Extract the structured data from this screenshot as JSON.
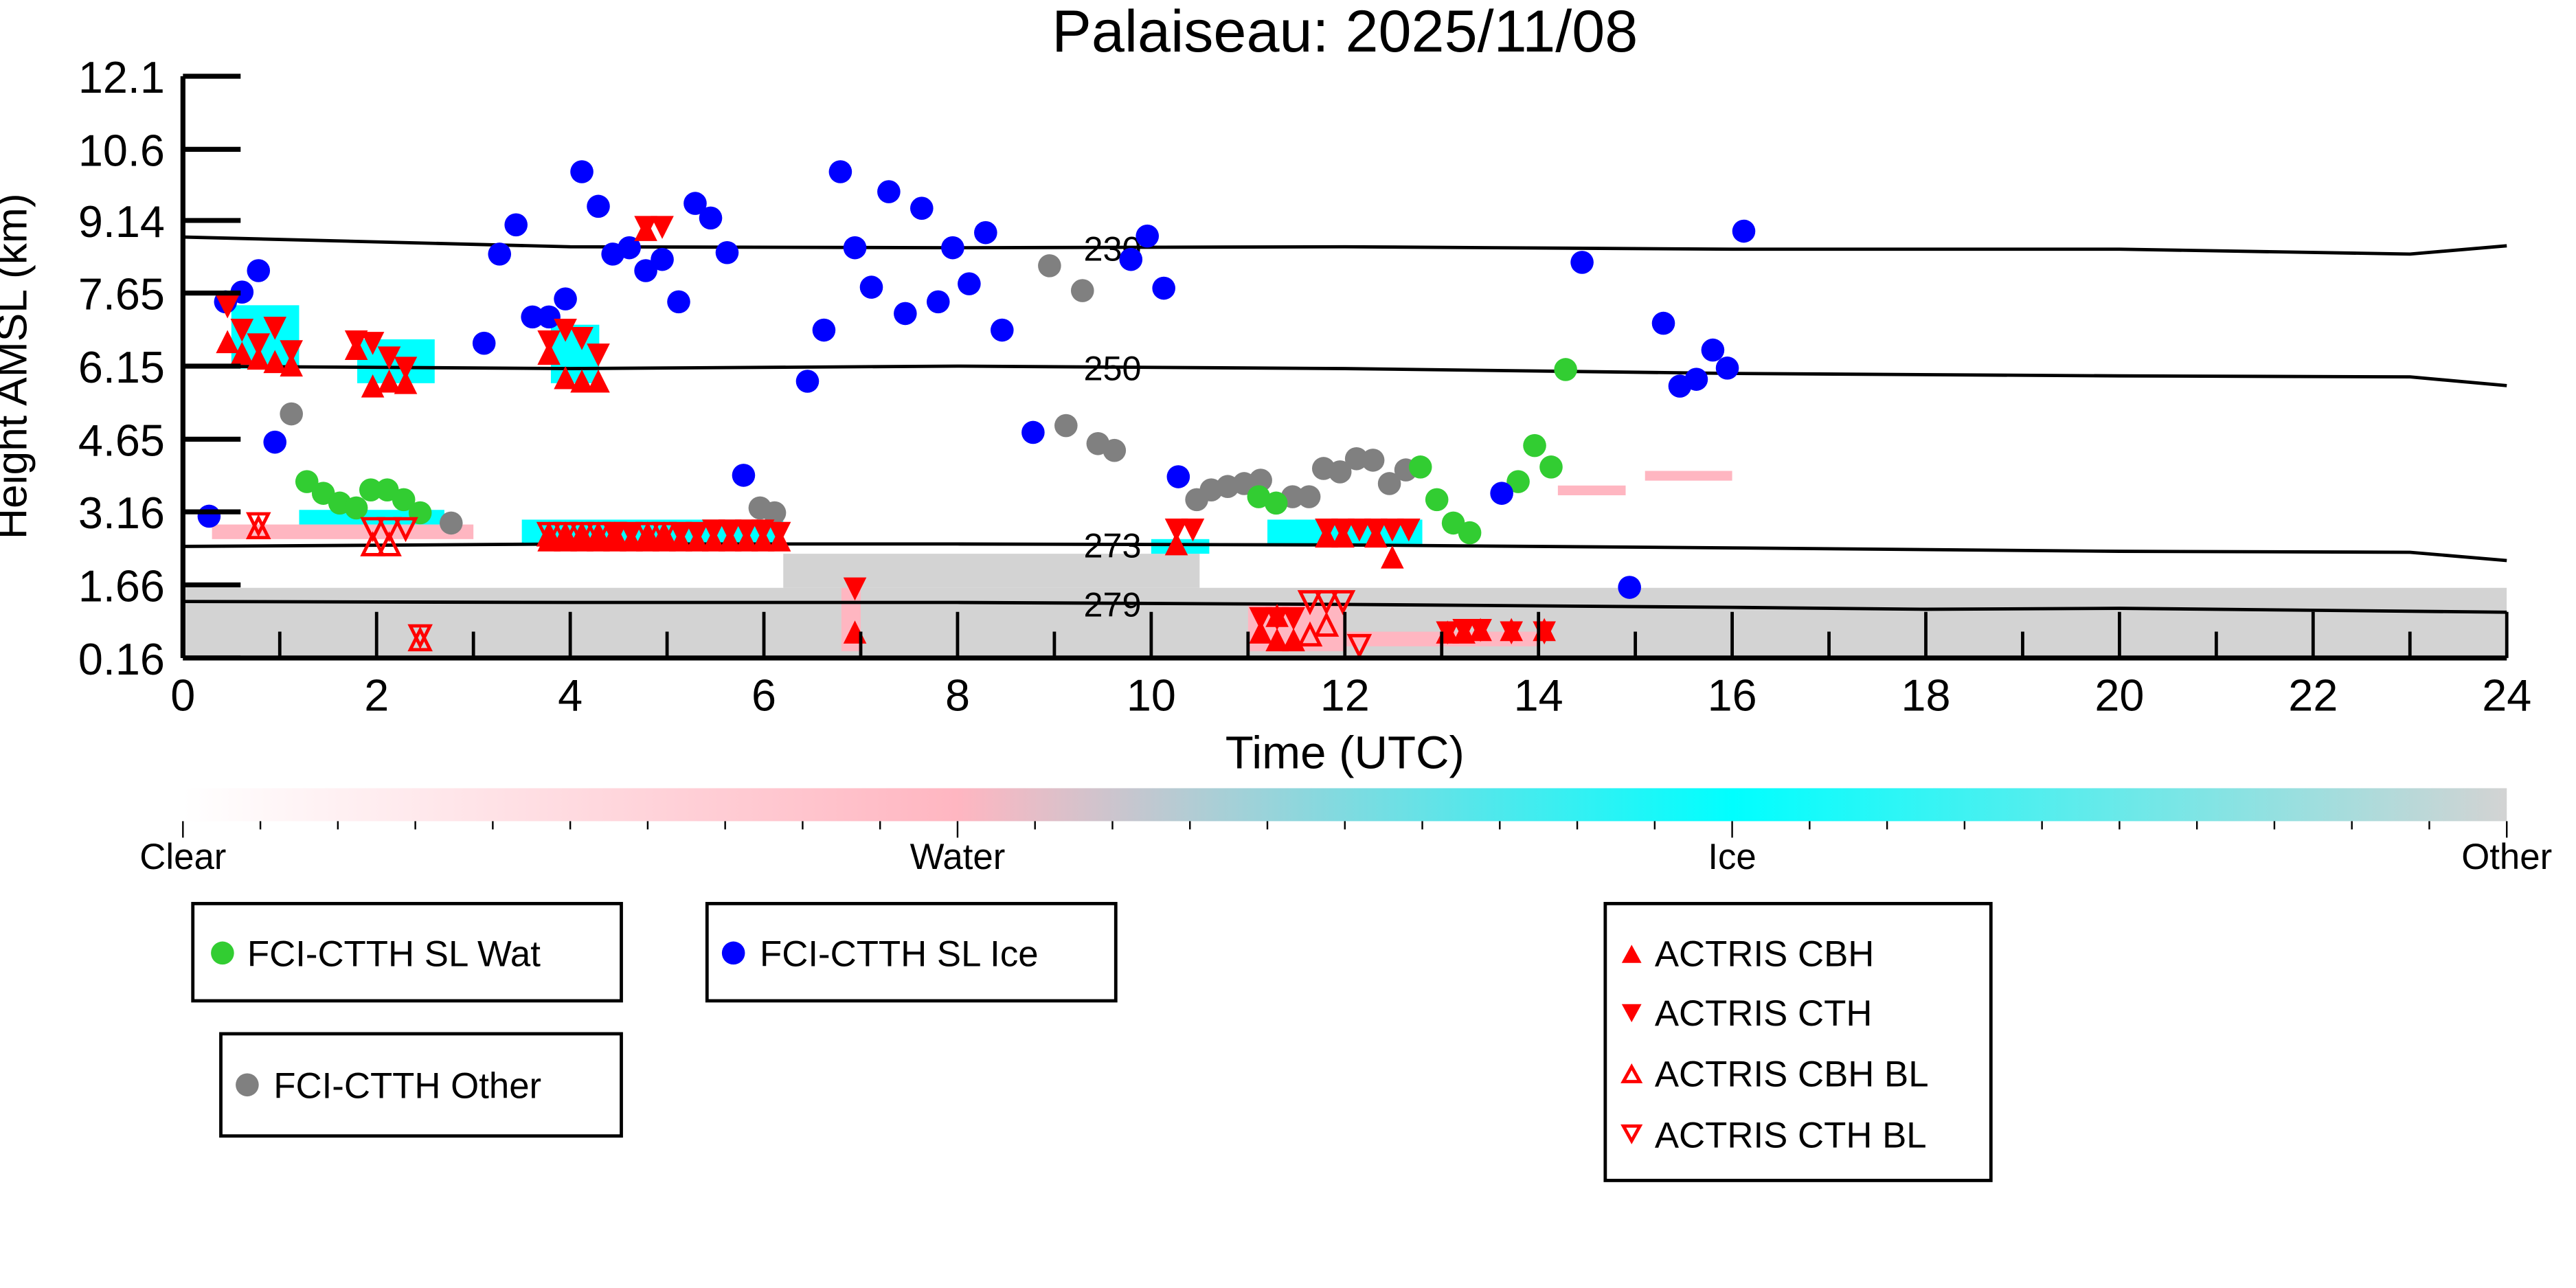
{
  "chart_data": {
    "type": "scatter",
    "title": "Palaiseau: 2025/11/08",
    "xlabel": "Time (UTC)",
    "ylabel": "Height AMSL (km)",
    "xlim": [
      0,
      24
    ],
    "ylim": [
      0.16,
      12.1
    ],
    "xticks": [
      "0",
      "2",
      "4",
      "6",
      "8",
      "10",
      "12",
      "14",
      "16",
      "18",
      "20",
      "22",
      "24"
    ],
    "yticks": [
      "0.16",
      "1.66",
      "3.16",
      "4.65",
      "6.15",
      "7.65",
      "9.14",
      "10.6",
      "12.1"
    ],
    "colorbar": {
      "labels": [
        "Clear",
        "Water",
        "Ice",
        "Other"
      ],
      "colors": [
        "#ffffff",
        "#ffb6c1",
        "#00ffff",
        "#d3d3d3"
      ]
    },
    "contours": [
      {
        "label": "230",
        "points": [
          [
            0,
            8.8
          ],
          [
            4,
            8.6
          ],
          [
            8,
            8.58
          ],
          [
            12,
            8.6
          ],
          [
            16,
            8.55
          ],
          [
            20,
            8.55
          ],
          [
            23,
            8.45
          ],
          [
            24,
            8.62
          ]
        ]
      },
      {
        "label": "250",
        "points": [
          [
            0,
            6.15
          ],
          [
            4,
            6.1
          ],
          [
            8,
            6.15
          ],
          [
            12,
            6.1
          ],
          [
            16,
            6.0
          ],
          [
            20,
            5.95
          ],
          [
            23,
            5.93
          ],
          [
            24,
            5.75
          ]
        ]
      },
      {
        "label": "273",
        "points": [
          [
            0,
            2.45
          ],
          [
            4,
            2.5
          ],
          [
            8,
            2.5
          ],
          [
            12,
            2.48
          ],
          [
            16,
            2.42
          ],
          [
            20,
            2.35
          ],
          [
            23,
            2.33
          ],
          [
            24,
            2.16
          ]
        ]
      },
      {
        "label": "279",
        "points": [
          [
            0,
            1.32
          ],
          [
            4,
            1.3
          ],
          [
            8,
            1.3
          ],
          [
            12,
            1.26
          ],
          [
            16,
            1.2
          ],
          [
            18,
            1.16
          ],
          [
            20,
            1.18
          ],
          [
            24,
            1.1
          ]
        ]
      }
    ],
    "curtain": [
      {
        "class": "Other",
        "t0": 0,
        "t1": 24,
        "h0": 0.16,
        "h1": 1.6
      },
      {
        "class": "Other",
        "t0": 6.2,
        "t1": 10.5,
        "h0": 1.6,
        "h1": 2.3
      },
      {
        "class": "Water",
        "t0": 0.3,
        "t1": 3.0,
        "h0": 2.6,
        "h1": 2.9
      },
      {
        "class": "Ice",
        "t0": 0.5,
        "t1": 1.2,
        "h0": 6.1,
        "h1": 7.4
      },
      {
        "class": "Ice",
        "t0": 1.8,
        "t1": 2.6,
        "h0": 5.8,
        "h1": 6.7
      },
      {
        "class": "Ice",
        "t0": 3.8,
        "t1": 4.3,
        "h0": 5.8,
        "h1": 7.0
      },
      {
        "class": "Ice",
        "t0": 1.2,
        "t1": 2.7,
        "h0": 2.9,
        "h1": 3.2
      },
      {
        "class": "Ice",
        "t0": 3.5,
        "t1": 6.2,
        "h0": 2.5,
        "h1": 3.0
      },
      {
        "class": "Ice",
        "t0": 10.0,
        "t1": 10.6,
        "h0": 2.3,
        "h1": 2.6
      },
      {
        "class": "Ice",
        "t0": 11.2,
        "t1": 12.8,
        "h0": 2.5,
        "h1": 3.0
      },
      {
        "class": "Water",
        "t0": 11.0,
        "t1": 12.0,
        "h0": 0.3,
        "h1": 1.3
      },
      {
        "class": "Water",
        "t0": 12.0,
        "t1": 14.0,
        "h0": 0.4,
        "h1": 0.7
      },
      {
        "class": "Water",
        "t0": 14.2,
        "t1": 14.9,
        "h0": 3.5,
        "h1": 3.7
      },
      {
        "class": "Water",
        "t0": 15.1,
        "t1": 16.0,
        "h0": 3.8,
        "h1": 4.0
      },
      {
        "class": "Water",
        "t0": 6.8,
        "t1": 7.0,
        "h0": 0.3,
        "h1": 1.6
      }
    ],
    "series": [
      {
        "name": "FCI-CTTH SL Wat",
        "marker": "circle",
        "color": "#32cd32",
        "points": [
          [
            1.28,
            3.78
          ],
          [
            1.45,
            3.54
          ],
          [
            1.62,
            3.34
          ],
          [
            1.79,
            3.24
          ],
          [
            1.94,
            3.61
          ],
          [
            2.11,
            3.61
          ],
          [
            2.28,
            3.41
          ],
          [
            2.45,
            3.14
          ],
          [
            11.11,
            3.47
          ],
          [
            11.29,
            3.34
          ],
          [
            12.78,
            4.08
          ],
          [
            12.95,
            3.41
          ],
          [
            13.12,
            2.93
          ],
          [
            13.29,
            2.73
          ],
          [
            13.79,
            3.78
          ],
          [
            13.96,
            4.52
          ],
          [
            14.13,
            4.08
          ],
          [
            14.28,
            6.08
          ]
        ]
      },
      {
        "name": "FCI-CTTH SL Ice",
        "marker": "circle",
        "color": "#0000ff",
        "points": [
          [
            0.27,
            3.07
          ],
          [
            0.44,
            7.47
          ],
          [
            0.61,
            7.67
          ],
          [
            0.78,
            8.11
          ],
          [
            0.95,
            4.59
          ],
          [
            3.11,
            6.62
          ],
          [
            3.27,
            8.45
          ],
          [
            3.44,
            9.05
          ],
          [
            3.61,
            7.16
          ],
          [
            3.78,
            7.16
          ],
          [
            3.95,
            7.53
          ],
          [
            4.12,
            10.14
          ],
          [
            4.29,
            9.43
          ],
          [
            4.44,
            8.45
          ],
          [
            4.61,
            8.58
          ],
          [
            4.78,
            8.11
          ],
          [
            4.95,
            8.34
          ],
          [
            5.12,
            7.47
          ],
          [
            5.29,
            9.49
          ],
          [
            5.45,
            9.19
          ],
          [
            5.62,
            8.48
          ],
          [
            5.79,
            3.91
          ],
          [
            6.45,
            5.84
          ],
          [
            6.62,
            6.89
          ],
          [
            6.79,
            10.14
          ],
          [
            6.94,
            8.58
          ],
          [
            7.11,
            7.77
          ],
          [
            7.29,
            9.73
          ],
          [
            7.46,
            7.23
          ],
          [
            7.63,
            9.39
          ],
          [
            7.8,
            7.47
          ],
          [
            7.95,
            8.58
          ],
          [
            8.12,
            7.84
          ],
          [
            8.29,
            8.89
          ],
          [
            8.46,
            6.89
          ],
          [
            8.78,
            4.79
          ],
          [
            9.79,
            8.34
          ],
          [
            9.96,
            8.82
          ],
          [
            10.13,
            7.75
          ],
          [
            10.28,
            3.88
          ],
          [
            13.62,
            3.54
          ],
          [
            14.45,
            8.28
          ],
          [
            14.94,
            1.61
          ],
          [
            15.29,
            7.03
          ],
          [
            15.46,
            5.74
          ],
          [
            15.63,
            5.88
          ],
          [
            15.8,
            6.48
          ],
          [
            15.95,
            6.11
          ],
          [
            16.12,
            8.92
          ]
        ]
      },
      {
        "name": "FCI-CTTH Other",
        "marker": "circle",
        "color": "#808080",
        "points": [
          [
            1.12,
            5.17
          ],
          [
            2.77,
            2.93
          ],
          [
            5.96,
            3.24
          ],
          [
            6.11,
            3.14
          ],
          [
            8.95,
            8.21
          ],
          [
            9.29,
            7.7
          ],
          [
            9.12,
            4.93
          ],
          [
            9.45,
            4.56
          ],
          [
            9.62,
            4.42
          ],
          [
            10.47,
            3.41
          ],
          [
            10.62,
            3.61
          ],
          [
            10.79,
            3.68
          ],
          [
            10.96,
            3.74
          ],
          [
            11.13,
            3.81
          ],
          [
            11.46,
            3.47
          ],
          [
            11.63,
            3.47
          ],
          [
            11.78,
            4.05
          ],
          [
            11.95,
            3.98
          ],
          [
            12.12,
            4.25
          ],
          [
            12.29,
            4.22
          ],
          [
            12.46,
            3.74
          ],
          [
            12.63,
            4.02
          ]
        ]
      },
      {
        "name": "ACTRIS CBH",
        "marker": "triangle-up",
        "color": "#ff0000",
        "points": [
          [
            0.46,
            6.62
          ],
          [
            0.61,
            6.38
          ],
          [
            0.78,
            6.28
          ],
          [
            0.95,
            6.21
          ],
          [
            1.12,
            6.14
          ],
          [
            1.79,
            6.48
          ],
          [
            1.96,
            5.71
          ],
          [
            2.13,
            5.81
          ],
          [
            2.3,
            5.78
          ],
          [
            3.78,
            6.38
          ],
          [
            3.95,
            5.88
          ],
          [
            4.12,
            5.81
          ],
          [
            4.29,
            5.81
          ],
          [
            4.78,
            8.92
          ],
          [
            3.78,
            2.55
          ],
          [
            3.95,
            2.55
          ],
          [
            4.12,
            2.55
          ],
          [
            4.29,
            2.55
          ],
          [
            4.46,
            2.55
          ],
          [
            4.63,
            2.55
          ],
          [
            4.8,
            2.55
          ],
          [
            4.97,
            2.55
          ],
          [
            5.14,
            2.55
          ],
          [
            5.31,
            2.55
          ],
          [
            5.48,
            2.55
          ],
          [
            5.65,
            2.55
          ],
          [
            5.82,
            2.55
          ],
          [
            5.99,
            2.55
          ],
          [
            6.16,
            2.55
          ],
          [
            6.94,
            0.66
          ],
          [
            10.26,
            2.47
          ],
          [
            11.13,
            0.66
          ],
          [
            11.3,
            0.5
          ],
          [
            11.47,
            0.5
          ],
          [
            11.3,
            1.0
          ],
          [
            11.81,
            2.63
          ],
          [
            11.98,
            2.63
          ],
          [
            12.32,
            2.63
          ],
          [
            12.49,
            2.2
          ],
          [
            13.06,
            0.66
          ],
          [
            13.23,
            0.66
          ],
          [
            13.4,
            0.71
          ],
          [
            13.72,
            0.71
          ],
          [
            14.06,
            0.71
          ]
        ]
      },
      {
        "name": "ACTRIS CTH",
        "marker": "triangle-down",
        "color": "#ff0000",
        "points": [
          [
            0.46,
            7.4
          ],
          [
            0.61,
            6.92
          ],
          [
            0.78,
            6.62
          ],
          [
            0.95,
            6.96
          ],
          [
            1.12,
            6.48
          ],
          [
            1.79,
            6.68
          ],
          [
            1.96,
            6.65
          ],
          [
            2.13,
            6.35
          ],
          [
            2.3,
            6.14
          ],
          [
            3.78,
            6.68
          ],
          [
            3.95,
            6.92
          ],
          [
            4.12,
            6.75
          ],
          [
            4.29,
            6.41
          ],
          [
            4.78,
            9.03
          ],
          [
            4.95,
            9.03
          ],
          [
            4.46,
            2.75
          ],
          [
            4.63,
            2.75
          ],
          [
            5.14,
            2.75
          ],
          [
            5.31,
            2.75
          ],
          [
            5.48,
            2.8
          ],
          [
            5.65,
            2.8
          ],
          [
            5.82,
            2.8
          ],
          [
            5.99,
            2.8
          ],
          [
            6.16,
            2.75
          ],
          [
            6.94,
            1.61
          ],
          [
            10.26,
            2.82
          ],
          [
            10.43,
            2.82
          ],
          [
            11.13,
            1.0
          ],
          [
            11.3,
            1.0
          ],
          [
            11.47,
            1.0
          ],
          [
            11.81,
            2.82
          ],
          [
            11.98,
            2.82
          ],
          [
            12.15,
            2.82
          ],
          [
            12.32,
            2.82
          ],
          [
            12.49,
            2.82
          ],
          [
            12.66,
            2.82
          ],
          [
            13.06,
            0.71
          ],
          [
            13.23,
            0.76
          ],
          [
            13.4,
            0.76
          ],
          [
            13.72,
            0.71
          ],
          [
            14.06,
            0.71
          ]
        ]
      },
      {
        "name": "ACTRIS CBH BL",
        "marker": "triangle-up-open",
        "color": "#ff0000",
        "points": [
          [
            0.78,
            2.8
          ],
          [
            1.96,
            2.45
          ],
          [
            2.13,
            2.45
          ],
          [
            2.45,
            0.5
          ],
          [
            3.78,
            2.65
          ],
          [
            3.95,
            2.65
          ],
          [
            4.12,
            2.65
          ],
          [
            4.29,
            2.65
          ],
          [
            4.46,
            2.65
          ],
          [
            4.8,
            2.65
          ],
          [
            4.97,
            2.65
          ],
          [
            11.64,
            0.6
          ],
          [
            11.81,
            0.8
          ]
        ]
      },
      {
        "name": "ACTRIS CTH BL",
        "marker": "triangle-down-open",
        "color": "#ff0000",
        "points": [
          [
            0.78,
            2.95
          ],
          [
            1.96,
            2.85
          ],
          [
            2.13,
            2.85
          ],
          [
            2.3,
            2.85
          ],
          [
            2.45,
            0.65
          ],
          [
            3.78,
            2.75
          ],
          [
            3.95,
            2.75
          ],
          [
            4.12,
            2.75
          ],
          [
            4.29,
            2.75
          ],
          [
            4.46,
            2.75
          ],
          [
            4.8,
            2.75
          ],
          [
            4.97,
            2.75
          ],
          [
            11.64,
            1.35
          ],
          [
            11.81,
            1.35
          ],
          [
            11.98,
            1.35
          ],
          [
            12.15,
            0.45
          ]
        ]
      }
    ]
  }
}
